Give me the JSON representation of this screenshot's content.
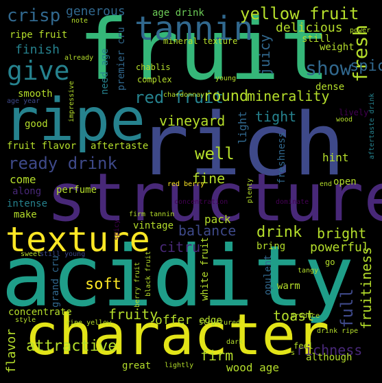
{
  "palette": {
    "background": "#000000",
    "dark_purple": "#440154",
    "purple": "#482878",
    "indigo": "#3e4989",
    "blue": "#31688e",
    "teal_blue": "#26828e",
    "teal": "#1f9e89",
    "green": "#35b779",
    "light_green": "#6ece58",
    "yellow_green": "#b5de2b",
    "yellow": "#fde725"
  },
  "words": [
    {
      "text": "acidity"
    },
    {
      "text": "rich"
    },
    {
      "text": "fruit"
    },
    {
      "text": "structure"
    },
    {
      "text": "character"
    },
    {
      "text": "ripe"
    },
    {
      "text": "texture"
    },
    {
      "text": "tannin"
    },
    {
      "text": "give"
    },
    {
      "text": "yellow fruit"
    },
    {
      "text": "ready drink"
    },
    {
      "text": "crisp"
    },
    {
      "text": "show"
    },
    {
      "text": "delicious"
    },
    {
      "text": "red fruit"
    },
    {
      "text": "round"
    },
    {
      "text": "fresh"
    },
    {
      "text": "spice"
    },
    {
      "text": "juicy"
    },
    {
      "text": "minerality"
    },
    {
      "text": "tight"
    },
    {
      "text": "vineyard"
    },
    {
      "text": "well"
    },
    {
      "text": "fine"
    },
    {
      "text": "drink"
    },
    {
      "text": "bright"
    },
    {
      "text": "full"
    },
    {
      "text": "powerful"
    },
    {
      "text": "fruitiness"
    },
    {
      "text": "richness"
    },
    {
      "text": "soft"
    },
    {
      "text": "fruity"
    },
    {
      "text": "toast"
    },
    {
      "text": "attractive"
    },
    {
      "text": "flavor"
    },
    {
      "text": "balance"
    },
    {
      "text": "citru"
    },
    {
      "text": "offer"
    },
    {
      "text": "firm"
    },
    {
      "text": "wood age"
    },
    {
      "text": "generous"
    },
    {
      "text": "finish"
    },
    {
      "text": "age drink"
    },
    {
      "text": "mineral texture"
    },
    {
      "text": "premier cru"
    },
    {
      "text": "need age"
    },
    {
      "text": "chablis"
    },
    {
      "text": "complex"
    },
    {
      "text": "ripe fruit"
    },
    {
      "text": "note"
    },
    {
      "text": "already"
    },
    {
      "text": "age year"
    },
    {
      "text": "smooth"
    },
    {
      "text": "impressive"
    },
    {
      "text": "good"
    },
    {
      "text": "fruit flavor"
    },
    {
      "text": "aftertaste"
    },
    {
      "text": "come"
    },
    {
      "text": "along"
    },
    {
      "text": "perfume"
    },
    {
      "text": "intense"
    },
    {
      "text": "make"
    },
    {
      "text": "light"
    },
    {
      "text": "freshness"
    },
    {
      "text": "hint"
    },
    {
      "text": "open"
    },
    {
      "text": "end"
    },
    {
      "text": "dominate"
    },
    {
      "text": "concentration"
    },
    {
      "text": "red berry"
    },
    {
      "text": "plenty"
    },
    {
      "text": "pack"
    },
    {
      "text": "vintage"
    },
    {
      "text": "chardonnay"
    },
    {
      "text": "young"
    },
    {
      "text": "dense"
    },
    {
      "text": "lively"
    },
    {
      "text": "wood"
    },
    {
      "text": "aftertaste drink"
    },
    {
      "text": "still"
    },
    {
      "text": "weight"
    },
    {
      "text": "power"
    },
    {
      "text": "spicy"
    },
    {
      "text": "firm tannin"
    },
    {
      "text": "still young"
    },
    {
      "text": "sweet"
    },
    {
      "text": "grand cru"
    },
    {
      "text": "concentrate"
    },
    {
      "text": "white fruit"
    },
    {
      "text": "black fruit"
    },
    {
      "text": "berry fruit"
    },
    {
      "text": "ripe yellow"
    },
    {
      "text": "style"
    },
    {
      "text": "warm"
    },
    {
      "text": "edge"
    },
    {
      "text": "structured"
    },
    {
      "text": "produce"
    },
    {
      "text": "bring"
    },
    {
      "text": "opulent"
    },
    {
      "text": "tangy"
    },
    {
      "text": "go"
    },
    {
      "text": "drink ripe"
    },
    {
      "text": "feel"
    },
    {
      "text": "although"
    },
    {
      "text": "dark"
    },
    {
      "text": "great"
    },
    {
      "text": "lightly"
    },
    {
      "text": "s"
    }
  ]
}
